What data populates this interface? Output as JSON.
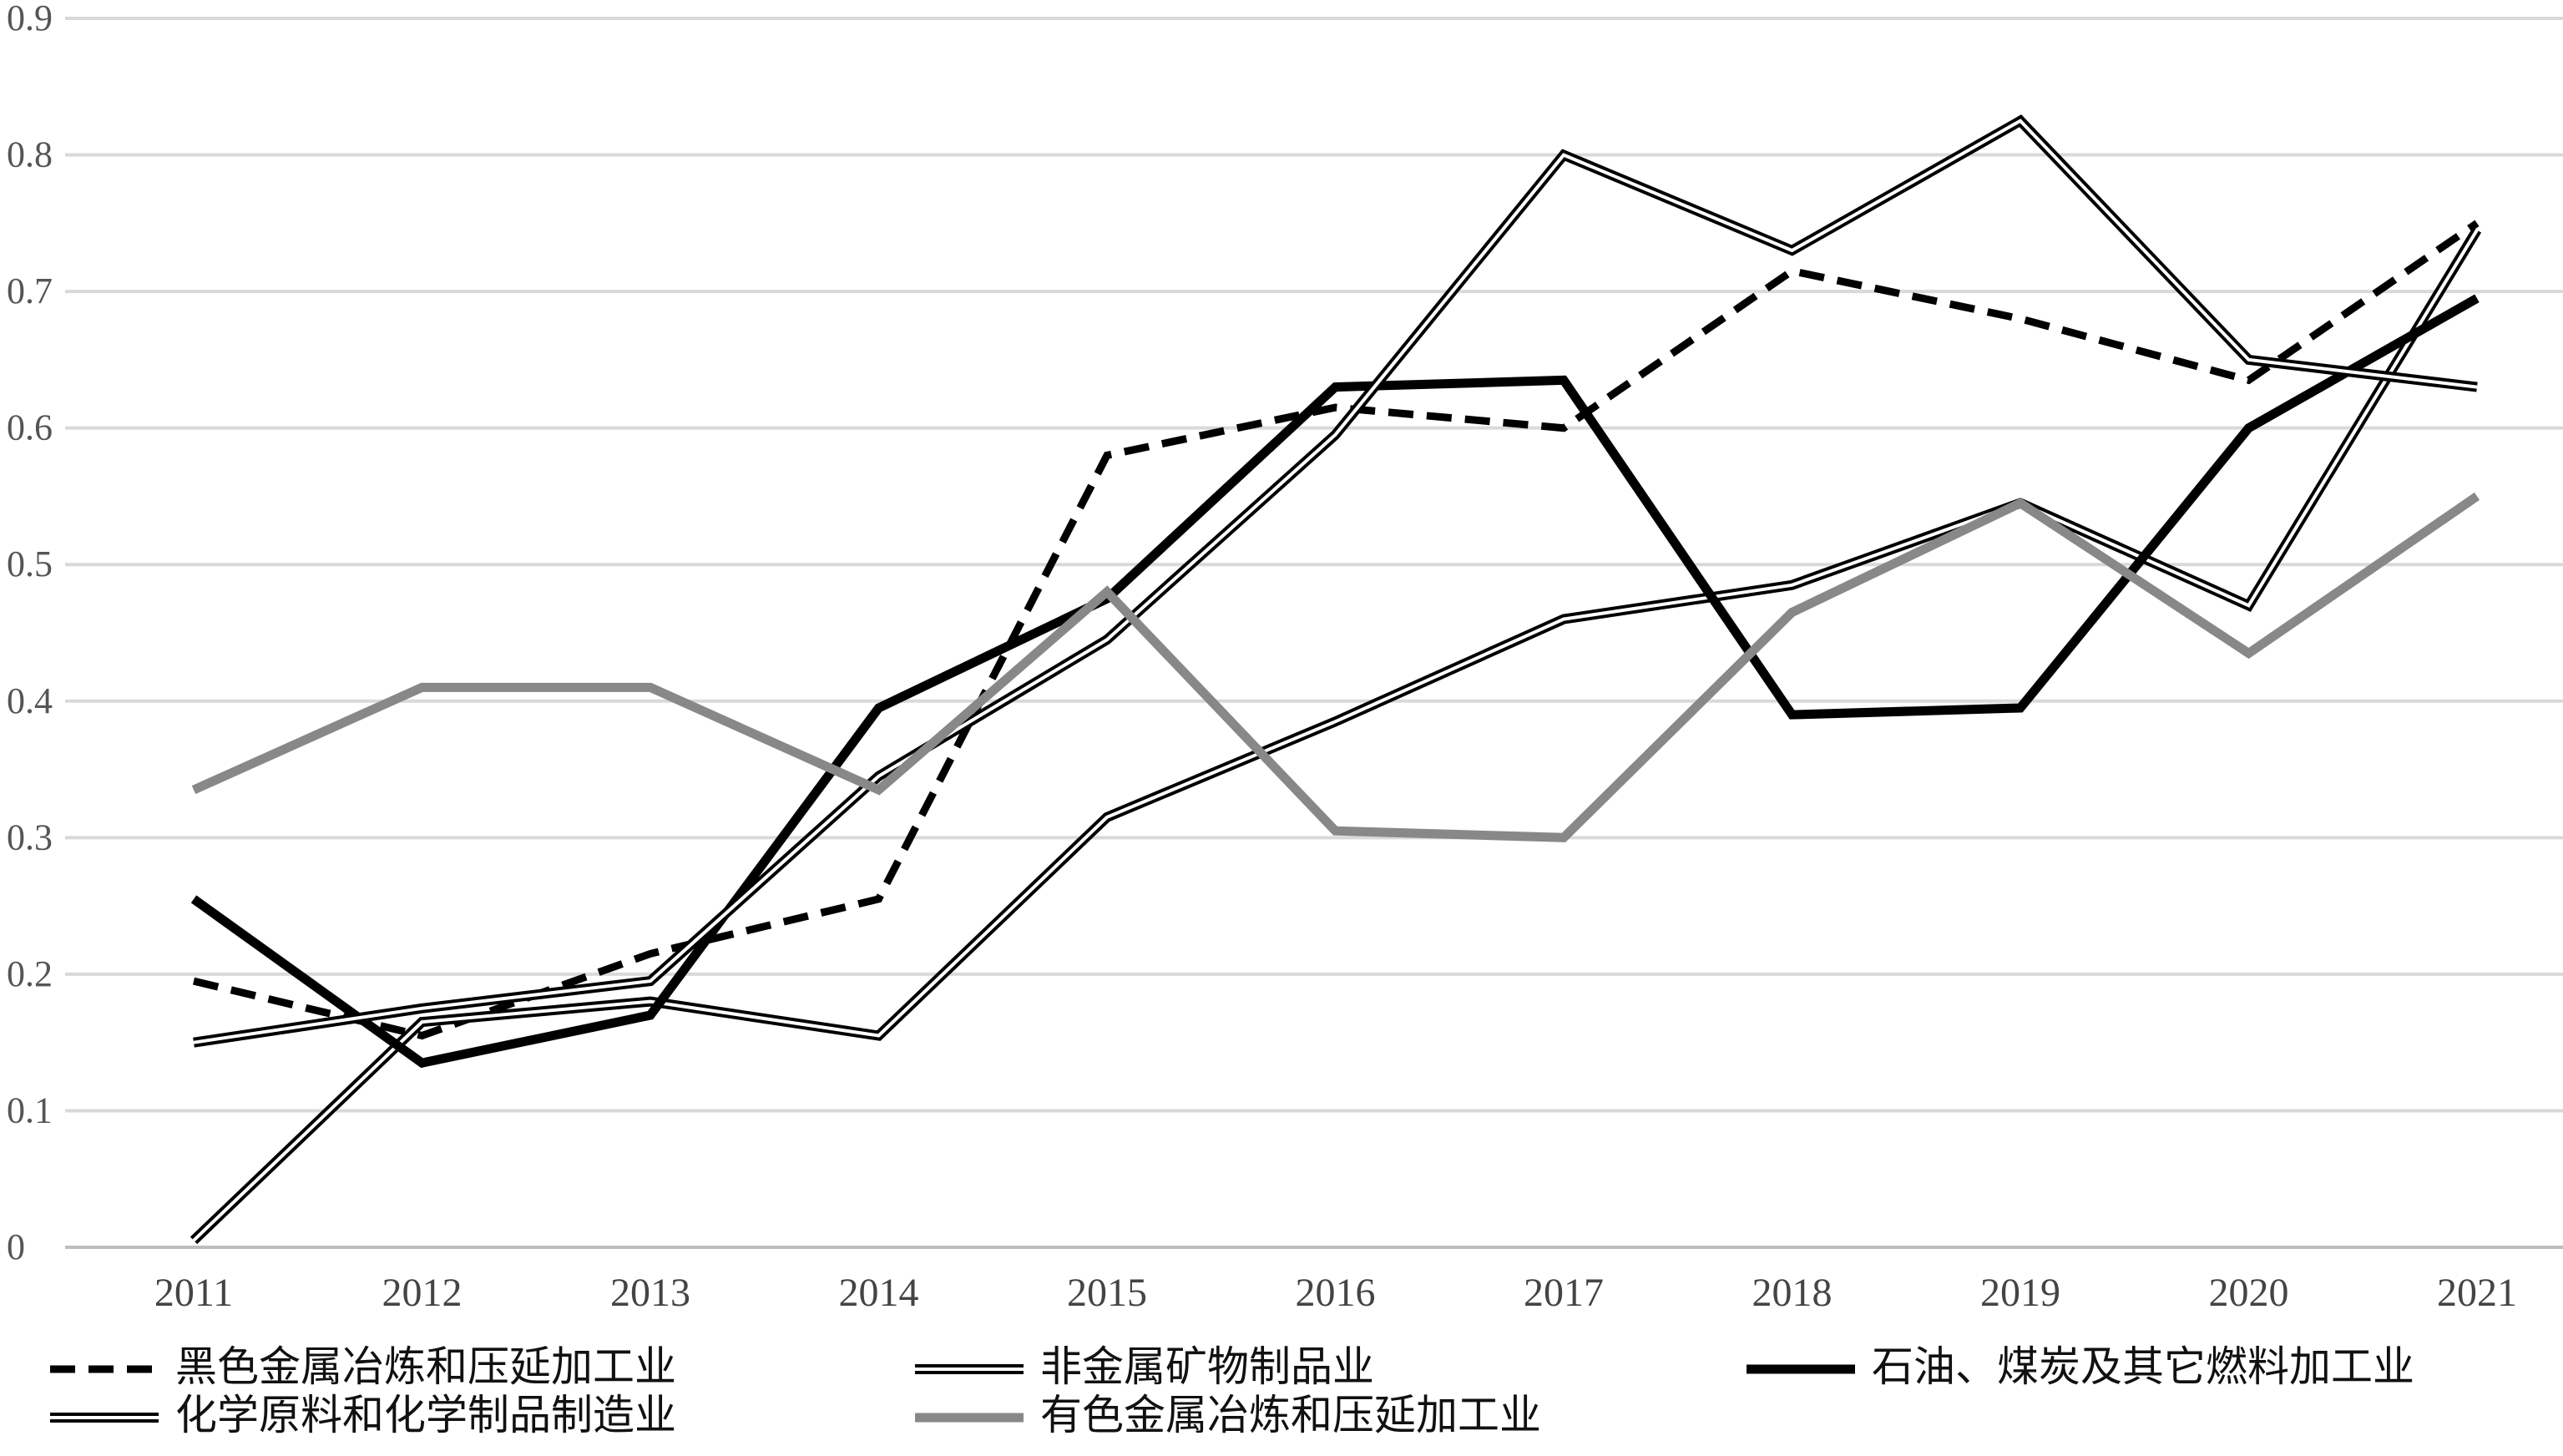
{
  "chart_data": {
    "type": "line",
    "title": "",
    "xlabel": "",
    "ylabel": "",
    "x": [
      "2011",
      "2012",
      "2013",
      "2014",
      "2015",
      "2016",
      "2017",
      "2018",
      "2019",
      "2020",
      "2021"
    ],
    "y_ticks": [
      "0",
      "0.1",
      "0.2",
      "0.3",
      "0.4",
      "0.5",
      "0.6",
      "0.7",
      "0.8",
      "0.9"
    ],
    "ylim": [
      0,
      0.9
    ],
    "grid": true,
    "legend_position": "bottom",
    "series": [
      {
        "name": "黑色金属冶炼和压延加工业",
        "style": "dashed",
        "color": "#000000",
        "values": [
          0.195,
          0.155,
          0.215,
          0.255,
          0.58,
          0.615,
          0.6,
          0.715,
          0.68,
          0.635,
          0.75
        ]
      },
      {
        "name": "非金属矿物制品业",
        "style": "double",
        "color": "#000000",
        "values": [
          0.005,
          0.165,
          0.18,
          0.155,
          0.315,
          0.385,
          0.46,
          0.485,
          0.545,
          0.47,
          0.745
        ]
      },
      {
        "name": "石油、煤炭及其它燃料加工业",
        "style": "thick",
        "color": "#000000",
        "values": [
          0.255,
          0.135,
          0.17,
          0.395,
          0.475,
          0.63,
          0.635,
          0.39,
          0.395,
          0.6,
          0.695
        ]
      },
      {
        "name": "化学原料和化学制品制造业",
        "style": "double",
        "color": "#000000",
        "values": [
          0.15,
          0.175,
          0.195,
          0.345,
          0.445,
          0.595,
          0.8,
          0.73,
          0.825,
          0.65,
          0.63
        ]
      },
      {
        "name": "有色金属冶炼和压延加工业",
        "style": "gray",
        "color": "#888888",
        "values": [
          0.335,
          0.41,
          0.41,
          0.335,
          0.48,
          0.305,
          0.3,
          0.465,
          0.545,
          0.435,
          0.55
        ]
      }
    ]
  }
}
